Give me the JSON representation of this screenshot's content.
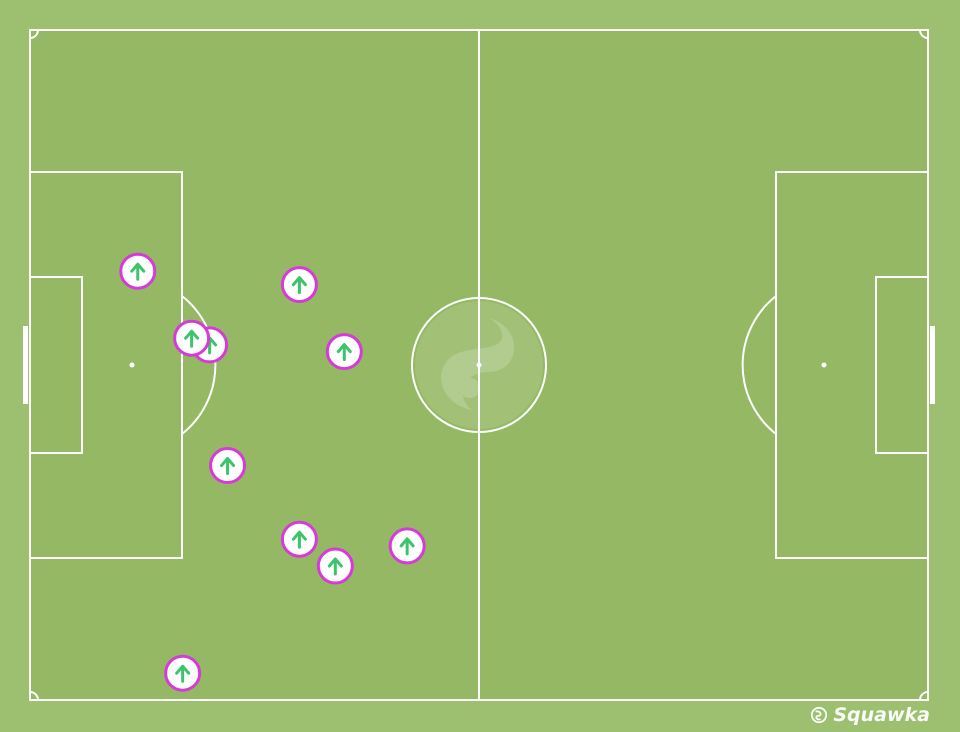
{
  "brand": {
    "name": "Squawka",
    "icon": "squawka-logo-icon"
  },
  "colors": {
    "background": "#9cbf70",
    "pitch": "#95b864",
    "lines": "#ffffff",
    "marker_ring": "#d63ad8",
    "marker_fill": "#ffffff",
    "marker_arrow": "#3cc46b"
  },
  "pitch": {
    "units": "percent-of-pitch",
    "length": 100,
    "width": 100
  },
  "events": [
    {
      "type": "ball-recovery",
      "x": 12,
      "y": 36
    },
    {
      "type": "ball-recovery",
      "x": 30,
      "y": 38
    },
    {
      "type": "ball-recovery",
      "x": 20,
      "y": 47
    },
    {
      "type": "ball-recovery",
      "x": 18,
      "y": 46
    },
    {
      "type": "ball-recovery",
      "x": 35,
      "y": 48
    },
    {
      "type": "ball-recovery",
      "x": 22,
      "y": 65
    },
    {
      "type": "ball-recovery",
      "x": 30,
      "y": 76
    },
    {
      "type": "ball-recovery",
      "x": 34,
      "y": 80
    },
    {
      "type": "ball-recovery",
      "x": 42,
      "y": 77
    },
    {
      "type": "ball-recovery",
      "x": 17,
      "y": 96
    }
  ]
}
